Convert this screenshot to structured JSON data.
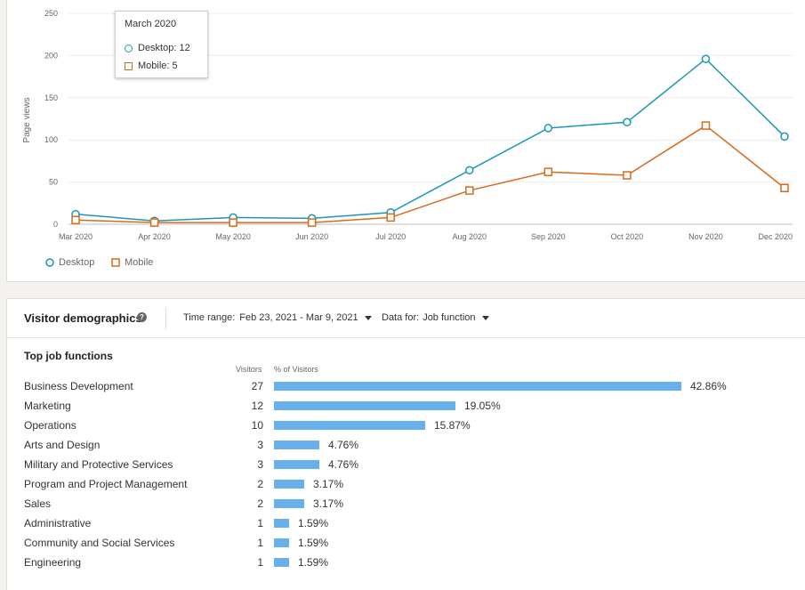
{
  "chart_data": {
    "type": "line",
    "categories": [
      "Mar 2020",
      "Apr 2020",
      "May 2020",
      "Jun 2020",
      "Jul 2020",
      "Aug 2020",
      "Sep 2020",
      "Oct 2020",
      "Nov 2020",
      "Dec 2020"
    ],
    "series": [
      {
        "name": "Desktop",
        "values": [
          12,
          4,
          8,
          7,
          14,
          64,
          114,
          121,
          196,
          104
        ],
        "color": "#1a97b5",
        "marker": "circle"
      },
      {
        "name": "Mobile",
        "values": [
          5,
          2,
          2,
          2,
          8,
          40,
          62,
          58,
          117,
          43
        ],
        "color": "#d86a1c",
        "marker": "square"
      }
    ],
    "ylabel": "Page views",
    "xlabel": "",
    "ylim": [
      0,
      250
    ],
    "yticks": [
      0,
      50,
      100,
      150,
      200,
      250
    ],
    "grid": true,
    "legend_position": "bottom-left"
  },
  "tooltip": {
    "title": "March 2020",
    "desktop": "Desktop: 12",
    "mobile": "Mobile: 5"
  },
  "demographics": {
    "title": "Visitor demographics",
    "time_range_label": "Time range:",
    "time_range_value": "Feb 23, 2021 - Mar 9, 2021",
    "data_for_label": "Data for:",
    "data_for_value": "Job function",
    "section_title": "Top job functions",
    "col_visitors": "Visitors",
    "col_percent": "% of Visitors",
    "bar_color": "#67b0ec",
    "rows": [
      {
        "name": "Business Development",
        "visitors": "27",
        "percent": "42.86%",
        "value": 42.86
      },
      {
        "name": "Marketing",
        "visitors": "12",
        "percent": "19.05%",
        "value": 19.05
      },
      {
        "name": "Operations",
        "visitors": "10",
        "percent": "15.87%",
        "value": 15.87
      },
      {
        "name": "Arts and Design",
        "visitors": "3",
        "percent": "4.76%",
        "value": 4.76
      },
      {
        "name": "Military and Protective Services",
        "visitors": "3",
        "percent": "4.76%",
        "value": 4.76
      },
      {
        "name": "Program and Project Management",
        "visitors": "2",
        "percent": "3.17%",
        "value": 3.17
      },
      {
        "name": "Sales",
        "visitors": "2",
        "percent": "3.17%",
        "value": 3.17
      },
      {
        "name": "Administrative",
        "visitors": "1",
        "percent": "1.59%",
        "value": 1.59
      },
      {
        "name": "Community and Social Services",
        "visitors": "1",
        "percent": "1.59%",
        "value": 1.59
      },
      {
        "name": "Engineering",
        "visitors": "1",
        "percent": "1.59%",
        "value": 1.59
      }
    ]
  }
}
